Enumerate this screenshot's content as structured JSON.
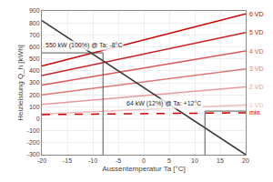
{
  "chart_data": {
    "type": "line",
    "xlabel": "Aussentemperatur Ta [°C]",
    "ylabel": "Heizleistung Q_h [kWh]",
    "x": [
      -20,
      20
    ],
    "series": [
      {
        "name": "6 VD",
        "color": "#cc0000",
        "values": [
          440,
          875
        ]
      },
      {
        "name": "5 VD",
        "color": "#cc2222",
        "values": [
          360,
          720
        ]
      },
      {
        "name": "4 VD",
        "color": "#dd5555",
        "values": [
          280,
          565
        ]
      },
      {
        "name": "3 VD",
        "color": "#e07777",
        "values": [
          200,
          415
        ]
      },
      {
        "name": "2 VD",
        "color": "#e89999",
        "values": [
          120,
          265
        ]
      },
      {
        "name": "1 VD",
        "color": "#f0bbbb",
        "values": [
          40,
          115
        ]
      },
      {
        "name": "min.",
        "color": "#cc0000",
        "line_style": "dashed",
        "values": [
          35,
          50
        ]
      },
      {
        "color": "#333333",
        "values": [
          820,
          -300
        ]
      }
    ],
    "annotations": [
      {
        "text": "550 kW (100%) @ Ta: -8°C",
        "x": -8,
        "y": 550
      },
      {
        "text": "64 kW (12%) @ Ta: +12°C",
        "x": 12,
        "y": 64
      }
    ],
    "xlim": [
      -20,
      20
    ],
    "ylim": [
      -300,
      900
    ],
    "xticks": [
      -20,
      -15,
      -10,
      -5,
      0,
      5,
      10,
      15,
      20
    ],
    "yticks": [
      -300,
      -200,
      -100,
      0,
      100,
      200,
      300,
      400,
      500,
      600,
      700,
      800,
      900
    ],
    "grid": true
  }
}
